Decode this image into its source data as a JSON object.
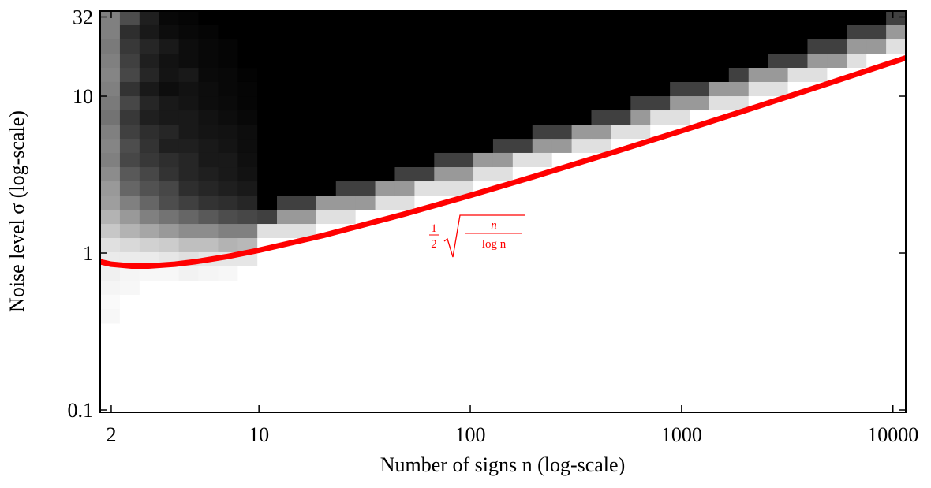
{
  "chart_data": {
    "type": "heatmap",
    "xlabel": "Number of signs n (log-scale)",
    "ylabel": "Noise level σ (log-scale)",
    "xscale": "log",
    "yscale": "log",
    "xlim": [
      1.774,
      11500
    ],
    "ylim": [
      0.0966,
      34.9
    ],
    "xticks": [
      2,
      10,
      100,
      1000,
      10000
    ],
    "yticks": [
      0.1,
      1,
      10,
      32
    ],
    "colormap": "gray_r",
    "x_bins": [
      1.774,
      2.198,
      2.722,
      3.372,
      4.177,
      5.174,
      6.41,
      7.94,
      9.83,
      12.17,
      15.08,
      18.68,
      23.14,
      28.66,
      35.5,
      43.98,
      54.5,
      67.5,
      83.6,
      103.5,
      128.2,
      158.8,
      196.8,
      243.8,
      302,
      374.1,
      463.4,
      574,
      711.1,
      880.9,
      1091,
      1352,
      1674,
      2074,
      2569,
      3183,
      3943,
      4884,
      6050,
      7495,
      9285,
      11500
    ],
    "y_bins": [
      34.9,
      28.34,
      23,
      18.68,
      15.17,
      12.32,
      10,
      8.12,
      6.59,
      5.35,
      4.35,
      3.53,
      2.866,
      2.327,
      1.889,
      1.534,
      1.246,
      1.012,
      0.822,
      0.667,
      0.542,
      0.44,
      0.357
    ],
    "z": [
      [
        0.5,
        0.7,
        0.88,
        0.97,
        0.98,
        1,
        1,
        1,
        1,
        1,
        1,
        1,
        1,
        1,
        1,
        1,
        1,
        1,
        1,
        1,
        1,
        1,
        1,
        1,
        1,
        1,
        1,
        1,
        1,
        1,
        1,
        1,
        1,
        1,
        1,
        1,
        1,
        1,
        1,
        1,
        0.75
      ],
      [
        0.5,
        0.82,
        0.9,
        0.95,
        0.97,
        0.98,
        1,
        1,
        1,
        1,
        1,
        1,
        1,
        1,
        1,
        1,
        1,
        1,
        1,
        1,
        1,
        1,
        1,
        1,
        1,
        1,
        1,
        1,
        1,
        1,
        1,
        1,
        1,
        1,
        1,
        1,
        1,
        1,
        0.75,
        0.75,
        0.4
      ],
      [
        0.52,
        0.78,
        0.85,
        0.9,
        0.95,
        0.97,
        0.98,
        1,
        1,
        1,
        1,
        1,
        1,
        1,
        1,
        1,
        1,
        1,
        1,
        1,
        1,
        1,
        1,
        1,
        1,
        1,
        1,
        1,
        1,
        1,
        1,
        1,
        1,
        1,
        1,
        1,
        0.75,
        0.75,
        0.4,
        0.4,
        0.12
      ],
      [
        0.5,
        0.75,
        0.88,
        0.93,
        0.95,
        0.97,
        0.98,
        1,
        1,
        1,
        1,
        1,
        1,
        1,
        1,
        1,
        1,
        1,
        1,
        1,
        1,
        1,
        1,
        1,
        1,
        1,
        1,
        1,
        1,
        1,
        1,
        1,
        1,
        1,
        0.75,
        0.75,
        0.4,
        0.4,
        0.12,
        0,
        0
      ],
      [
        0.48,
        0.72,
        0.85,
        0.92,
        0.9,
        0.96,
        0.97,
        0.99,
        1,
        1,
        1,
        1,
        1,
        1,
        1,
        1,
        1,
        1,
        1,
        1,
        1,
        1,
        1,
        1,
        1,
        1,
        1,
        1,
        1,
        1,
        1,
        1,
        0.75,
        0.4,
        0.4,
        0.12,
        0.12,
        0,
        0,
        0,
        0
      ],
      [
        0.5,
        0.8,
        0.9,
        0.95,
        0.93,
        0.95,
        0.97,
        0.98,
        1,
        1,
        1,
        1,
        1,
        1,
        1,
        1,
        1,
        1,
        1,
        1,
        1,
        1,
        1,
        1,
        1,
        1,
        1,
        1,
        1,
        0.75,
        0.75,
        0.4,
        0.4,
        0.12,
        0.12,
        0,
        0,
        0,
        0,
        0,
        0
      ],
      [
        0.52,
        0.72,
        0.85,
        0.9,
        0.92,
        0.95,
        0.96,
        0.98,
        1,
        1,
        1,
        1,
        1,
        1,
        1,
        1,
        1,
        1,
        1,
        1,
        1,
        1,
        1,
        1,
        1,
        1,
        1,
        0.75,
        0.75,
        0.4,
        0.4,
        0.12,
        0.12,
        0,
        0,
        0,
        0,
        0,
        0,
        0,
        0
      ],
      [
        0.55,
        0.78,
        0.88,
        0.9,
        0.9,
        0.93,
        0.95,
        0.97,
        1,
        1,
        1,
        1,
        1,
        1,
        1,
        1,
        1,
        1,
        1,
        1,
        1,
        1,
        1,
        1,
        1,
        0.75,
        0.75,
        0.4,
        0.12,
        0.12,
        0,
        0,
        0,
        0,
        0,
        0,
        0,
        0,
        0,
        0,
        0
      ],
      [
        0.5,
        0.75,
        0.82,
        0.85,
        0.9,
        0.92,
        0.93,
        0.95,
        1,
        1,
        1,
        1,
        1,
        1,
        1,
        1,
        1,
        1,
        1,
        1,
        1,
        1,
        0.75,
        0.75,
        0.4,
        0.4,
        0.12,
        0.12,
        0,
        0,
        0,
        0,
        0,
        0,
        0,
        0,
        0,
        0,
        0,
        0,
        0
      ],
      [
        0.48,
        0.7,
        0.8,
        0.88,
        0.88,
        0.9,
        0.92,
        0.95,
        1,
        1,
        1,
        1,
        1,
        1,
        1,
        1,
        1,
        1,
        1,
        1,
        0.75,
        0.75,
        0.4,
        0.4,
        0.12,
        0.12,
        0,
        0,
        0,
        0,
        0,
        0,
        0,
        0,
        0,
        0,
        0,
        0,
        0,
        0,
        0
      ],
      [
        0.5,
        0.72,
        0.78,
        0.82,
        0.85,
        0.9,
        0.9,
        0.94,
        1,
        1,
        1,
        1,
        1,
        1,
        1,
        1,
        1,
        0.75,
        0.75,
        0.4,
        0.4,
        0.12,
        0.12,
        0,
        0,
        0,
        0,
        0,
        0,
        0,
        0,
        0,
        0,
        0,
        0,
        0,
        0,
        0,
        0,
        0,
        0
      ],
      [
        0.45,
        0.65,
        0.72,
        0.8,
        0.85,
        0.88,
        0.9,
        0.93,
        1,
        1,
        1,
        1,
        1,
        1,
        1,
        0.75,
        0.75,
        0.4,
        0.4,
        0.12,
        0.12,
        0,
        0,
        0,
        0,
        0,
        0,
        0,
        0,
        0,
        0,
        0,
        0,
        0,
        0,
        0,
        0,
        0,
        0,
        0,
        0
      ],
      [
        0.4,
        0.6,
        0.68,
        0.72,
        0.82,
        0.85,
        0.88,
        0.9,
        1,
        1,
        1,
        1,
        0.75,
        0.75,
        0.4,
        0.4,
        0.12,
        0.12,
        0.12,
        0,
        0,
        0,
        0,
        0,
        0,
        0,
        0,
        0,
        0,
        0,
        0,
        0,
        0,
        0,
        0,
        0,
        0,
        0,
        0,
        0,
        0
      ],
      [
        0.38,
        0.5,
        0.6,
        0.7,
        0.75,
        0.8,
        0.82,
        0.85,
        1,
        0.75,
        0.75,
        0.4,
        0.4,
        0.4,
        0.12,
        0.12,
        0,
        0,
        0,
        0,
        0,
        0,
        0,
        0,
        0,
        0,
        0,
        0,
        0,
        0,
        0,
        0,
        0,
        0,
        0,
        0,
        0,
        0,
        0,
        0,
        0
      ],
      [
        0.3,
        0.4,
        0.5,
        0.55,
        0.6,
        0.65,
        0.7,
        0.72,
        0.75,
        0.4,
        0.4,
        0.12,
        0.12,
        0,
        0,
        0,
        0,
        0,
        0,
        0,
        0,
        0,
        0,
        0,
        0,
        0,
        0,
        0,
        0,
        0,
        0,
        0,
        0,
        0,
        0,
        0,
        0,
        0,
        0,
        0,
        0
      ],
      [
        0.22,
        0.3,
        0.35,
        0.4,
        0.45,
        0.45,
        0.5,
        0.5,
        0.12,
        0.12,
        0.12,
        0,
        0,
        0,
        0,
        0,
        0,
        0,
        0,
        0,
        0,
        0,
        0,
        0,
        0,
        0,
        0,
        0,
        0,
        0,
        0,
        0,
        0,
        0,
        0,
        0,
        0,
        0,
        0,
        0,
        0
      ],
      [
        0.12,
        0.15,
        0.18,
        0.2,
        0.25,
        0.25,
        0.3,
        0.28,
        0,
        0,
        0,
        0,
        0,
        0,
        0,
        0,
        0,
        0,
        0,
        0,
        0,
        0,
        0,
        0,
        0,
        0,
        0,
        0,
        0,
        0,
        0,
        0,
        0,
        0,
        0,
        0,
        0,
        0,
        0,
        0,
        0
      ],
      [
        0.08,
        0.08,
        0.08,
        0.1,
        0.12,
        0.1,
        0.1,
        0.1,
        0,
        0,
        0,
        0,
        0,
        0,
        0,
        0,
        0,
        0,
        0,
        0,
        0,
        0,
        0,
        0,
        0,
        0,
        0,
        0,
        0,
        0,
        0,
        0,
        0,
        0,
        0,
        0,
        0,
        0,
        0,
        0,
        0
      ],
      [
        0.06,
        0.04,
        0.03,
        0.03,
        0.05,
        0.04,
        0.03,
        0,
        0,
        0,
        0,
        0,
        0,
        0,
        0,
        0,
        0,
        0,
        0,
        0,
        0,
        0,
        0,
        0,
        0,
        0,
        0,
        0,
        0,
        0,
        0,
        0,
        0,
        0,
        0,
        0,
        0,
        0,
        0,
        0,
        0
      ],
      [
        0.04,
        0.03,
        0,
        0,
        0,
        0,
        0,
        0,
        0,
        0,
        0,
        0,
        0,
        0,
        0,
        0,
        0,
        0,
        0,
        0,
        0,
        0,
        0,
        0,
        0,
        0,
        0,
        0,
        0,
        0,
        0,
        0,
        0,
        0,
        0,
        0,
        0,
        0,
        0,
        0,
        0
      ],
      [
        0.02,
        0,
        0,
        0,
        0,
        0,
        0,
        0,
        0,
        0,
        0,
        0,
        0,
        0,
        0,
        0,
        0,
        0,
        0,
        0,
        0,
        0,
        0,
        0,
        0,
        0,
        0,
        0,
        0,
        0,
        0,
        0,
        0,
        0,
        0,
        0,
        0,
        0,
        0,
        0,
        0
      ],
      [
        0.03,
        0,
        0,
        0,
        0,
        0,
        0,
        0,
        0,
        0,
        0,
        0,
        0,
        0,
        0,
        0,
        0,
        0,
        0,
        0,
        0,
        0,
        0,
        0,
        0,
        0,
        0,
        0,
        0,
        0,
        0,
        0,
        0,
        0,
        0,
        0,
        0,
        0,
        0,
        0,
        0
      ]
    ],
    "curve": {
      "color": "#ff0000",
      "x": [
        1.774,
        2,
        2.5,
        3,
        4,
        5,
        7,
        10,
        20,
        50,
        100,
        200,
        500,
        1000,
        2000,
        5000,
        10000,
        11500
      ],
      "y": [
        0.88,
        0.849,
        0.826,
        0.826,
        0.849,
        0.881,
        0.948,
        1.042,
        1.292,
        1.788,
        2.33,
        3.072,
        4.485,
        6.016,
        8.11,
        12.11,
        16.48,
        17.54
      ]
    },
    "annotation": {
      "coefficient": {
        "numerator": "1",
        "denominator": "2"
      },
      "radicand": {
        "numerator": "n",
        "denominator": "log n"
      }
    }
  }
}
